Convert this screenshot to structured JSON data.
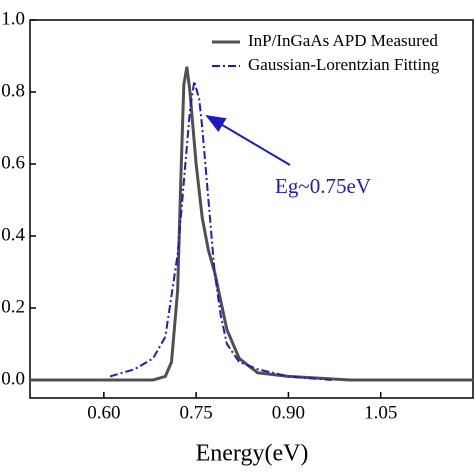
{
  "chart_data": {
    "type": "line",
    "x_label": "Energy(eV)",
    "annotation": "Eg~0.75eV",
    "xlim": [
      0.48,
      1.2
    ],
    "ylim": [
      -0.05,
      1.0
    ],
    "xticks": [
      {
        "value": 0.6,
        "label": "0.60"
      },
      {
        "value": 0.75,
        "label": "0.75"
      },
      {
        "value": 0.9,
        "label": "0.90"
      },
      {
        "value": 1.05,
        "label": "1.05"
      }
    ],
    "yticks": [
      {
        "value": 0,
        "label": "0.0"
      },
      0.2,
      0.4,
      0.6,
      0.8,
      {
        "value": 1,
        "label": "1.0"
      }
    ],
    "legend": "upper right",
    "series": [
      {
        "name": "InP/InGaAs APD Measured",
        "color": "#505050",
        "style": "solid",
        "x": [
          0.48,
          0.6,
          0.68,
          0.7,
          0.71,
          0.72,
          0.725,
          0.73,
          0.735,
          0.74,
          0.75,
          0.76,
          0.77,
          0.78,
          0.79,
          0.8,
          0.82,
          0.85,
          0.9,
          1.0,
          1.1,
          1.2
        ],
        "values": [
          0,
          0,
          0,
          0.01,
          0.05,
          0.25,
          0.55,
          0.82,
          0.87,
          0.8,
          0.6,
          0.45,
          0.36,
          0.3,
          0.22,
          0.14,
          0.06,
          0.02,
          0.01,
          0,
          0,
          0
        ]
      },
      {
        "name": "Gaussian-Lorentzian Fitting",
        "color": "#1c1cc0",
        "style": "dashdot",
        "x": [
          0.61,
          0.65,
          0.68,
          0.7,
          0.72,
          0.73,
          0.74,
          0.747,
          0.755,
          0.76,
          0.77,
          0.78,
          0.79,
          0.8,
          0.82,
          0.85,
          0.9,
          0.97
        ],
        "values": [
          0.01,
          0.03,
          0.06,
          0.12,
          0.35,
          0.55,
          0.75,
          0.83,
          0.78,
          0.7,
          0.5,
          0.3,
          0.18,
          0.1,
          0.05,
          0.03,
          0.01,
          0
        ]
      }
    ]
  }
}
